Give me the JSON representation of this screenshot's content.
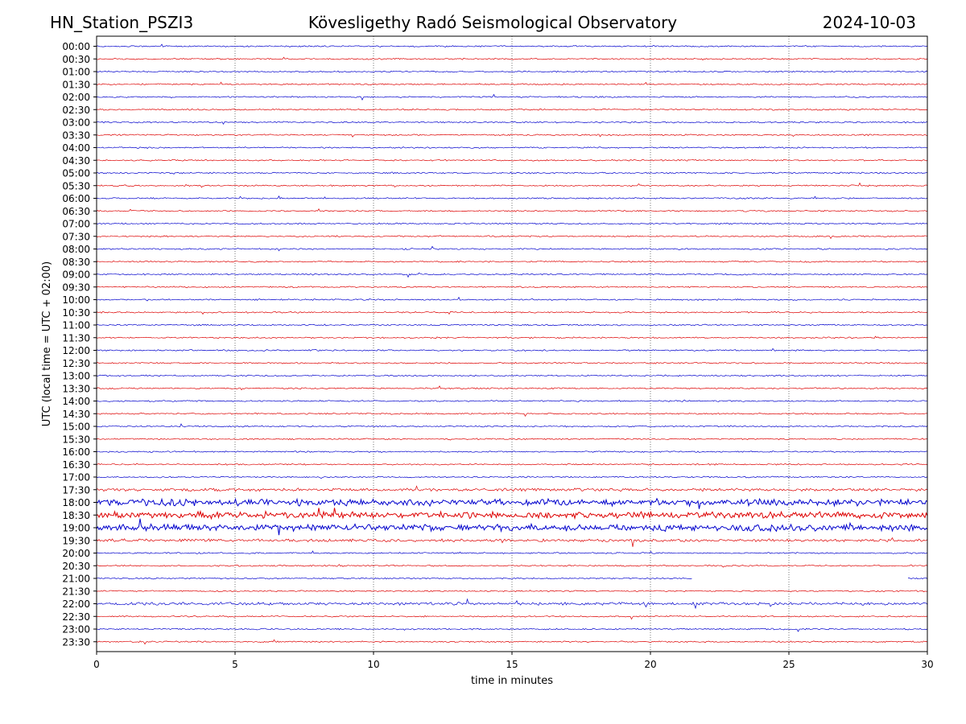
{
  "header": {
    "station": "HN_Station_PSZI3",
    "observatory": "Kövesligethy Radó Seismological Observatory",
    "date": "2024-10-03"
  },
  "chart_data": {
    "type": "line",
    "title": "Kövesligethy Radó Seismological Observatory",
    "xlabel": "time in minutes",
    "ylabel": "UTC (local time = UTC + 02:00)",
    "xlim": [
      0,
      30
    ],
    "x_ticks": [
      "0",
      "5",
      "10",
      "15",
      "20",
      "25",
      "30"
    ],
    "grid": "vertical dotted at 5-minute intervals",
    "colors": {
      "odd_trace": "#0000cc",
      "even_trace": "#dd0000",
      "grid": "#555555"
    },
    "traces": [
      {
        "label": "00:00",
        "color": "blue",
        "activity": "low"
      },
      {
        "label": "00:30",
        "color": "red",
        "activity": "low"
      },
      {
        "label": "01:00",
        "color": "blue",
        "activity": "low"
      },
      {
        "label": "01:30",
        "color": "red",
        "activity": "low"
      },
      {
        "label": "02:00",
        "color": "blue",
        "activity": "low"
      },
      {
        "label": "02:30",
        "color": "red",
        "activity": "low"
      },
      {
        "label": "03:00",
        "color": "blue",
        "activity": "low"
      },
      {
        "label": "03:30",
        "color": "red",
        "activity": "low"
      },
      {
        "label": "04:00",
        "color": "blue",
        "activity": "low"
      },
      {
        "label": "04:30",
        "color": "red",
        "activity": "low"
      },
      {
        "label": "05:00",
        "color": "blue",
        "activity": "low"
      },
      {
        "label": "05:30",
        "color": "red",
        "activity": "low"
      },
      {
        "label": "06:00",
        "color": "blue",
        "activity": "low"
      },
      {
        "label": "06:30",
        "color": "red",
        "activity": "low"
      },
      {
        "label": "07:00",
        "color": "blue",
        "activity": "low"
      },
      {
        "label": "07:30",
        "color": "red",
        "activity": "low"
      },
      {
        "label": "08:00",
        "color": "blue",
        "activity": "low"
      },
      {
        "label": "08:30",
        "color": "red",
        "activity": "low"
      },
      {
        "label": "09:00",
        "color": "blue",
        "activity": "low"
      },
      {
        "label": "09:30",
        "color": "red",
        "activity": "low"
      },
      {
        "label": "10:00",
        "color": "blue",
        "activity": "low"
      },
      {
        "label": "10:30",
        "color": "red",
        "activity": "low"
      },
      {
        "label": "11:00",
        "color": "blue",
        "activity": "low"
      },
      {
        "label": "11:30",
        "color": "red",
        "activity": "low"
      },
      {
        "label": "12:00",
        "color": "blue",
        "activity": "low"
      },
      {
        "label": "12:30",
        "color": "red",
        "activity": "low"
      },
      {
        "label": "13:00",
        "color": "blue",
        "activity": "low"
      },
      {
        "label": "13:30",
        "color": "red",
        "activity": "low"
      },
      {
        "label": "14:00",
        "color": "blue",
        "activity": "low"
      },
      {
        "label": "14:30",
        "color": "red",
        "activity": "low"
      },
      {
        "label": "15:00",
        "color": "blue",
        "activity": "low"
      },
      {
        "label": "15:30",
        "color": "red",
        "activity": "low"
      },
      {
        "label": "16:00",
        "color": "blue",
        "activity": "low"
      },
      {
        "label": "16:30",
        "color": "red",
        "activity": "low"
      },
      {
        "label": "17:00",
        "color": "blue",
        "activity": "low"
      },
      {
        "label": "17:30",
        "color": "red",
        "activity": "medium"
      },
      {
        "label": "18:00",
        "color": "blue",
        "activity": "high"
      },
      {
        "label": "18:30",
        "color": "red",
        "activity": "high"
      },
      {
        "label": "19:00",
        "color": "blue",
        "activity": "high"
      },
      {
        "label": "19:30",
        "color": "red",
        "activity": "medium"
      },
      {
        "label": "20:00",
        "color": "blue",
        "activity": "low"
      },
      {
        "label": "20:30",
        "color": "red",
        "activity": "low"
      },
      {
        "label": "21:00",
        "color": "blue",
        "activity": "low",
        "data_gap_minutes": [
          21.5,
          29.3
        ]
      },
      {
        "label": "21:30",
        "color": "red",
        "activity": "low"
      },
      {
        "label": "22:00",
        "color": "blue",
        "activity": "medium"
      },
      {
        "label": "22:30",
        "color": "red",
        "activity": "low"
      },
      {
        "label": "23:00",
        "color": "blue",
        "activity": "low"
      },
      {
        "label": "23:30",
        "color": "red",
        "activity": "low"
      }
    ]
  }
}
